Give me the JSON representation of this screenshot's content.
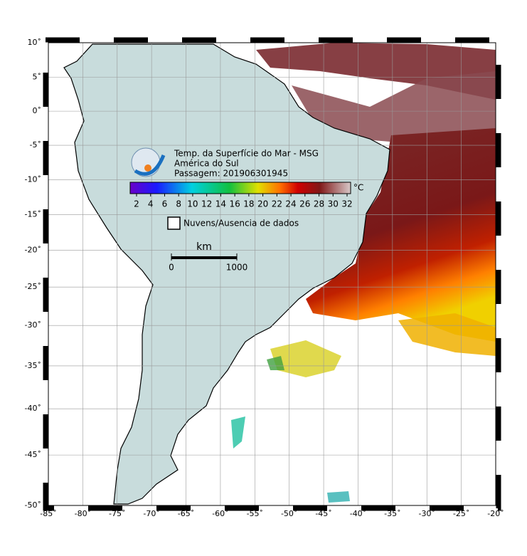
{
  "title": {
    "lines": [
      "Temp. da Superfície do Mar - MSG",
      "América do Sul",
      "Passagem: 201906301945"
    ]
  },
  "colorbar": {
    "unit": "°C",
    "ticks": [
      2,
      4,
      6,
      8,
      10,
      12,
      14,
      16,
      18,
      20,
      22,
      24,
      26,
      28,
      30,
      32
    ]
  },
  "legend": {
    "label": "Nuvens/Ausencia de dados"
  },
  "scale": {
    "unit": "km",
    "ticks": [
      0,
      1000
    ]
  },
  "axes": {
    "lat_ticks": [
      {
        "value": 10,
        "label": "10˚"
      },
      {
        "value": 5,
        "label": "5˚"
      },
      {
        "value": 0,
        "label": "0˚"
      },
      {
        "value": -5,
        "label": "-5˚"
      },
      {
        "value": -10,
        "label": "-10˚"
      },
      {
        "value": -15,
        "label": "-15˚"
      },
      {
        "value": -20,
        "label": "-20˚"
      },
      {
        "value": -25,
        "label": "-25˚"
      },
      {
        "value": -30,
        "label": "-30˚"
      },
      {
        "value": -35,
        "label": "-35˚"
      },
      {
        "value": -40,
        "label": "-40˚"
      },
      {
        "value": -45,
        "label": "-45˚"
      },
      {
        "value": -50,
        "label": "-50˚"
      }
    ],
    "lon_ticks": [
      {
        "value": -85,
        "label": "-85˚"
      },
      {
        "value": -80,
        "label": "-80˚"
      },
      {
        "value": -75,
        "label": "-75˚"
      },
      {
        "value": -70,
        "label": "-70˚"
      },
      {
        "value": -65,
        "label": "-65˚"
      },
      {
        "value": -60,
        "label": "-60˚"
      },
      {
        "value": -55,
        "label": "-55˚"
      },
      {
        "value": -50,
        "label": "-50˚"
      },
      {
        "value": -45,
        "label": "-45˚"
      },
      {
        "value": -40,
        "label": "-40˚"
      },
      {
        "value": -35,
        "label": "-35˚"
      },
      {
        "value": -30,
        "label": "-30˚"
      },
      {
        "value": -25,
        "label": "-25˚"
      },
      {
        "value": -20,
        "label": "-20˚"
      }
    ]
  }
}
